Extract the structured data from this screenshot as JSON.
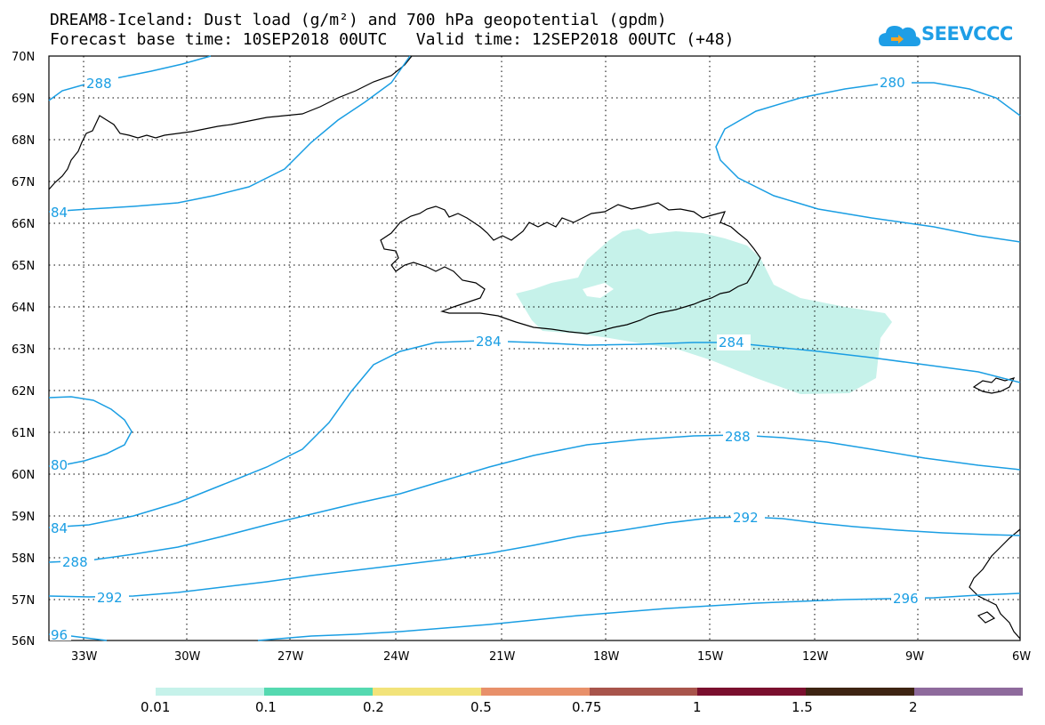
{
  "title": {
    "line1": "DREAM8-Iceland: Dust load (g/m²) and 700 hPa geopotential (gpdm)",
    "line2": "Forecast base time: 10SEP2018 00UTC   Valid time: 12SEP2018 00UTC (+48)"
  },
  "logo": {
    "text": "SEEVCCC",
    "color": "#1e9ee6"
  },
  "map": {
    "lat_labels": [
      "70N",
      "69N",
      "68N",
      "67N",
      "66N",
      "65N",
      "64N",
      "63N",
      "62N",
      "61N",
      "60N",
      "59N",
      "58N",
      "57N",
      "56N"
    ],
    "lon_labels": [
      "33W",
      "30W",
      "27W",
      "24W",
      "21W",
      "18W",
      "15W",
      "12W",
      "9W",
      "6W"
    ],
    "lat_range": [
      56,
      70
    ],
    "lon_range": [
      -34.2,
      -6
    ],
    "gridlines": "dotted",
    "contour_color": "#1a9ee3",
    "contour_labels": [
      "288",
      "280",
      "84",
      "284",
      "284",
      "80",
      "288",
      "84",
      "292",
      "288",
      "292",
      "296",
      "96"
    ]
  },
  "colorbar": {
    "colors": [
      "#c6f2ea",
      "#55d9b0",
      "#f2e37a",
      "#e8906a",
      "#a8544b",
      "#7a0f2e",
      "#3e2412",
      "#8e6a9c"
    ],
    "labels": [
      "0.01",
      "0.1",
      "0.2",
      "0.5",
      "0.75",
      "1",
      "1.5",
      "2"
    ]
  }
}
